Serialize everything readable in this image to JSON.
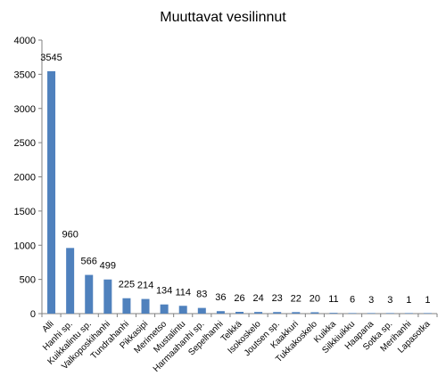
{
  "chart_data": {
    "type": "bar",
    "title": "Muuttavat vesilinnut",
    "xlabel": "",
    "ylabel": "",
    "ylim": [
      0,
      4000
    ],
    "yticks": [
      0,
      500,
      1000,
      1500,
      2000,
      2500,
      3000,
      3500,
      4000
    ],
    "grid": false,
    "legend": "none",
    "bar_color": "#4F81BD",
    "categories": [
      "Alli",
      "Hanhi sp.",
      "Kuikkalintu sp.",
      "Valkoposkihanhi",
      "Tundrahanhi",
      "Pikkasipi",
      "Merimetso",
      "Mustalintu",
      "Harmaahanhi sp.",
      "Sepelhanhi",
      "Telkkä",
      "Isokoskelo",
      "Joutsen sp.",
      "Kaakkuri",
      "Tukkakoskelo",
      "Kuikka",
      "Silkkiuikku",
      "Haapana",
      "Sotka sp.",
      "Merihanhi",
      "Lapasotka"
    ],
    "values": [
      3545,
      960,
      566,
      499,
      225,
      214,
      134,
      114,
      83,
      36,
      26,
      24,
      23,
      22,
      20,
      11,
      6,
      3,
      3,
      1,
      1
    ],
    "value_labels": [
      "3545",
      "960",
      "566",
      "499",
      "225",
      "214",
      "134",
      "114",
      "83",
      "36",
      "26",
      "24",
      "23",
      "22",
      "20",
      "11",
      "6",
      "3",
      "3",
      "1",
      "1"
    ]
  }
}
